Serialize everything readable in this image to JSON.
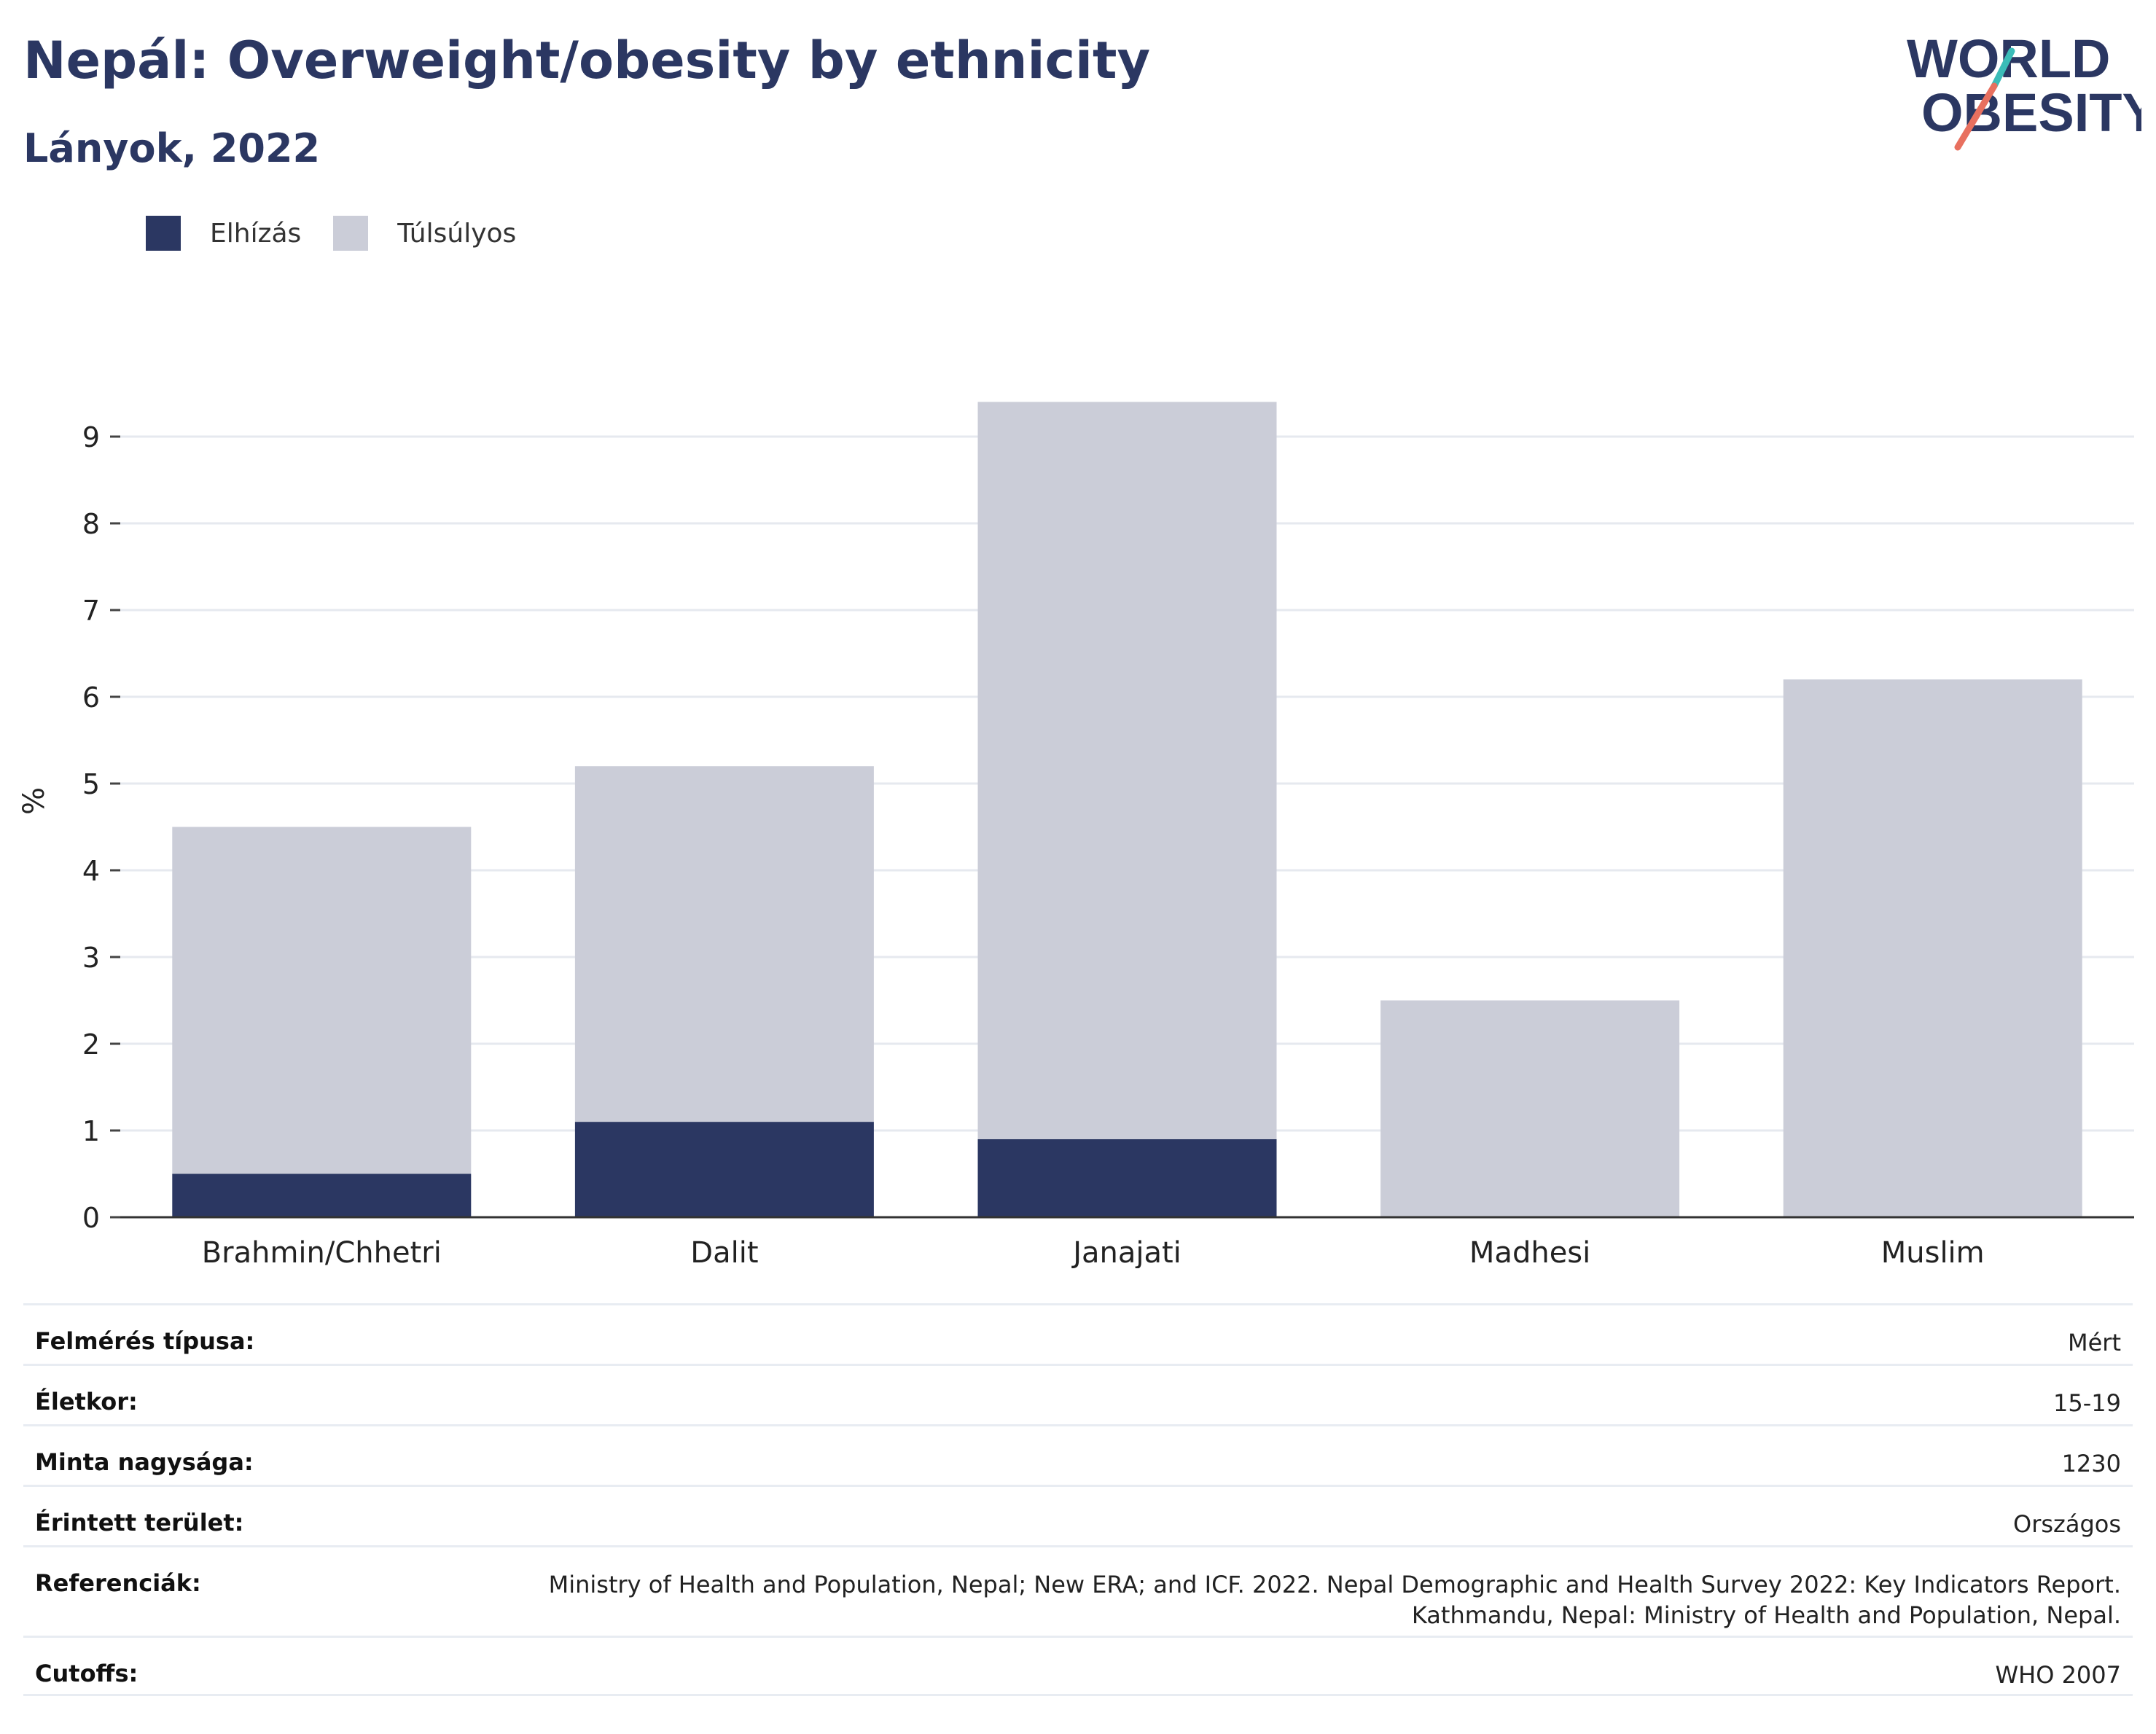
{
  "header": {
    "title": "Nepál: Overweight/obesity by ethnicity",
    "subtitle": "Lányok, 2022"
  },
  "logo": {
    "line1": "WORLD",
    "line2": "OBESITY"
  },
  "colors": {
    "obesity": "#2b3762",
    "overweight": "#cbcdd8",
    "title": "#2b3762",
    "logo_teal": "#3bbcb8",
    "logo_coral": "#e8705f"
  },
  "legend": [
    {
      "label": "Elhízás",
      "color": "#2b3762"
    },
    {
      "label": "Túlsúlyos",
      "color": "#cbcdd8"
    }
  ],
  "chart_data": {
    "type": "bar",
    "stacked": true,
    "categories": [
      "Brahmin/Chhetri",
      "Dalit",
      "Janajati",
      "Madhesi",
      "Muslim"
    ],
    "series": [
      {
        "name": "Elhízás",
        "values": [
          0.5,
          1.1,
          0.9,
          0,
          0
        ]
      },
      {
        "name": "Túlsúlyos",
        "values": [
          4.0,
          4.1,
          8.5,
          2.5,
          6.2
        ]
      }
    ],
    "ylabel": "%",
    "ylim": [
      0,
      9.5
    ],
    "yticks": [
      0,
      1,
      2,
      3,
      4,
      5,
      6,
      7,
      8,
      9
    ],
    "grid": true,
    "legend_position": "top-left"
  },
  "info": [
    {
      "label": "Felmérés típusa:",
      "value": [
        "Mért"
      ]
    },
    {
      "label": "Életkor:",
      "value": [
        "15-19"
      ]
    },
    {
      "label": "Minta nagysága:",
      "value": [
        "1230"
      ]
    },
    {
      "label": "Érintett terület:",
      "value": [
        "Országos"
      ]
    },
    {
      "label": "Referenciák:",
      "value": [
        "Ministry of Health and Population, Nepal; New ERA; and ICF. 2022. Nepal Demographic and Health Survey 2022: Key Indicators Report.",
        "Kathmandu, Nepal: Ministry of Health and Population, Nepal."
      ]
    },
    {
      "label": "Cutoffs:",
      "value": [
        "WHO 2007"
      ]
    }
  ]
}
